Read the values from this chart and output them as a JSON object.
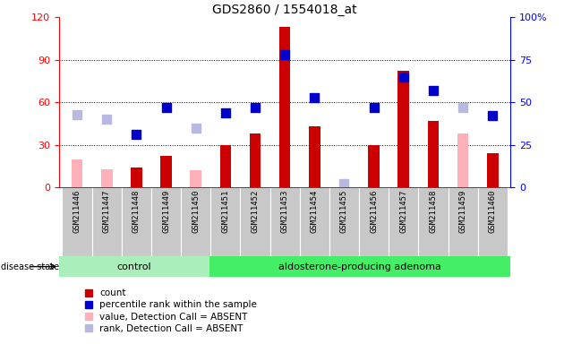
{
  "title": "GDS2860 / 1554018_at",
  "samples": [
    "GSM211446",
    "GSM211447",
    "GSM211448",
    "GSM211449",
    "GSM211450",
    "GSM211451",
    "GSM211452",
    "GSM211453",
    "GSM211454",
    "GSM211455",
    "GSM211456",
    "GSM211457",
    "GSM211458",
    "GSM211459",
    "GSM211460"
  ],
  "n_control": 5,
  "n_adenoma": 10,
  "count": [
    null,
    null,
    14,
    22,
    null,
    30,
    38,
    113,
    43,
    null,
    30,
    82,
    47,
    null,
    24
  ],
  "percentile_rank": [
    null,
    null,
    31,
    47,
    null,
    44,
    47,
    78,
    53,
    null,
    47,
    65,
    57,
    null,
    42
  ],
  "value_absent": [
    20,
    13,
    null,
    null,
    12,
    null,
    null,
    null,
    null,
    null,
    null,
    null,
    null,
    38,
    null
  ],
  "rank_absent": [
    43,
    40,
    null,
    null,
    35,
    null,
    null,
    null,
    null,
    2,
    null,
    null,
    null,
    47,
    null
  ],
  "left_ylim": [
    0,
    120
  ],
  "right_ylim": [
    0,
    100
  ],
  "left_yticks": [
    0,
    30,
    60,
    90,
    120
  ],
  "right_yticks": [
    0,
    25,
    50,
    75,
    100
  ],
  "bar_color": "#cc0000",
  "square_color": "#0000cc",
  "absent_value_color": "#ffb0b8",
  "absent_rank_color": "#b8b8e0",
  "ctrl_color": "#aaeebb",
  "adeno_color": "#44ee66",
  "box_color": "#c8c8c8",
  "legend_items": [
    "count",
    "percentile rank within the sample",
    "value, Detection Call = ABSENT",
    "rank, Detection Call = ABSENT"
  ]
}
